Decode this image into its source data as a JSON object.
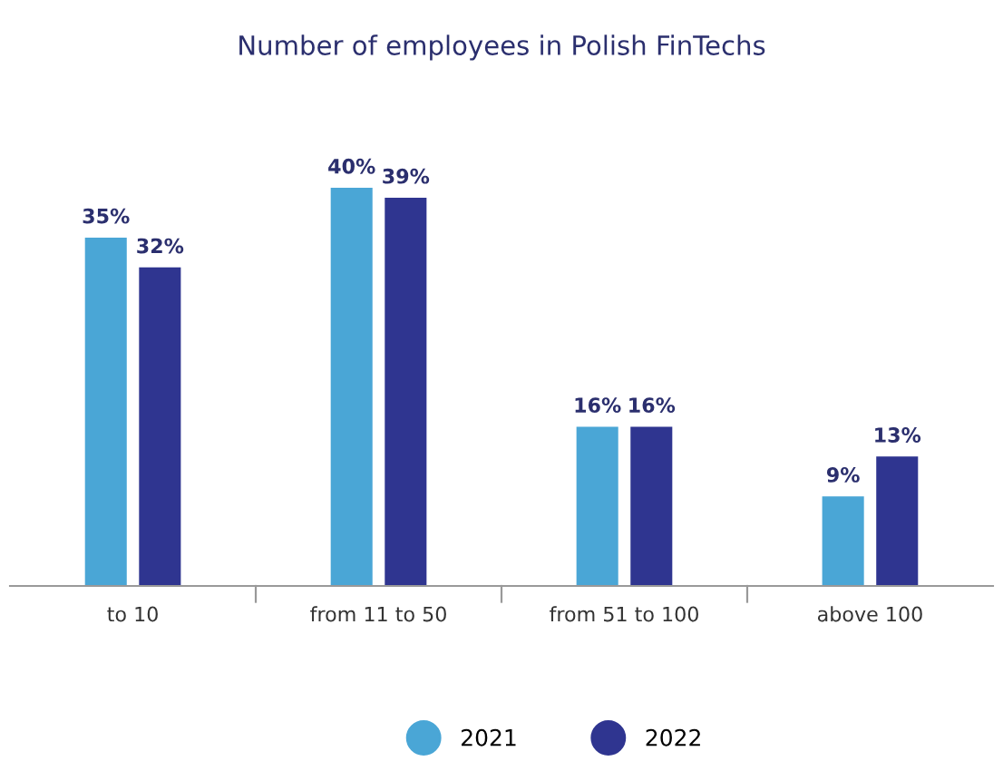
{
  "chart_data": {
    "type": "bar",
    "title": "Number of employees in Polish FinTechs",
    "categories": [
      "to 10",
      "from 11 to 50",
      "from 51 to 100",
      "above 100"
    ],
    "series": [
      {
        "name": "2021",
        "color": "#4aa6d6",
        "values": [
          35,
          40,
          16,
          9
        ],
        "value_labels": [
          "35%",
          "40%",
          "16%",
          "9%"
        ]
      },
      {
        "name": "2022",
        "color": "#2f3590",
        "values": [
          32,
          39,
          16,
          13
        ],
        "value_labels": [
          "32%",
          "39%",
          "16%",
          "13%"
        ]
      }
    ],
    "legend": "bottom",
    "grid": false
  }
}
